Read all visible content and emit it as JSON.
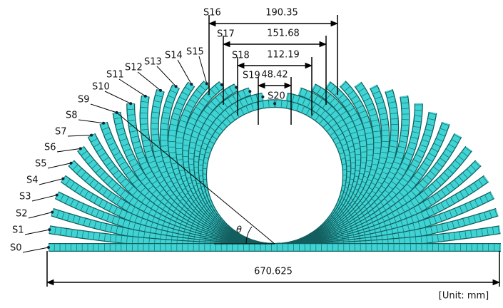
{
  "labels": [
    "S0",
    "S1",
    "S2",
    "S3",
    "S4",
    "S5",
    "S6",
    "S7",
    "S8",
    "S9",
    "S10",
    "S11",
    "S12",
    "S13",
    "S14",
    "S15",
    "S16",
    "S17",
    "S18",
    "S19",
    "S20"
  ],
  "dimensions": [
    190.35,
    151.68,
    112.19,
    48.42
  ],
  "total_length": 670.625,
  "angle_symbol": "θ",
  "unit_note": "[Unit: mm]"
}
